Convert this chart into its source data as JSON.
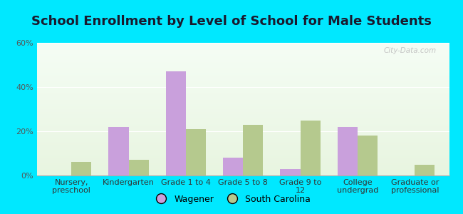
{
  "title": "School Enrollment by Level of School for Male Students",
  "categories": [
    "Nursery,\npreschool",
    "Kindergarten",
    "Grade 1 to 4",
    "Grade 5 to 8",
    "Grade 9 to\n12",
    "College\nundergrad",
    "Graduate or\nprofessional"
  ],
  "wagener": [
    0,
    22,
    47,
    8,
    3,
    22,
    0
  ],
  "south_carolina": [
    6,
    7,
    21,
    23,
    25,
    18,
    5
  ],
  "wagener_color": "#c9a0dc",
  "sc_color": "#b5c98e",
  "background_color": "#00e8ff",
  "plot_bg_top": "#e8f5e0",
  "plot_bg_bottom": "#f5fdf5",
  "ylim": [
    0,
    60
  ],
  "yticks": [
    0,
    20,
    40,
    60
  ],
  "ytick_labels": [
    "0%",
    "20%",
    "40%",
    "60%"
  ],
  "legend_wagener": "Wagener",
  "legend_sc": "South Carolina",
  "title_fontsize": 13,
  "tick_fontsize": 8,
  "legend_fontsize": 9,
  "bar_width": 0.35
}
